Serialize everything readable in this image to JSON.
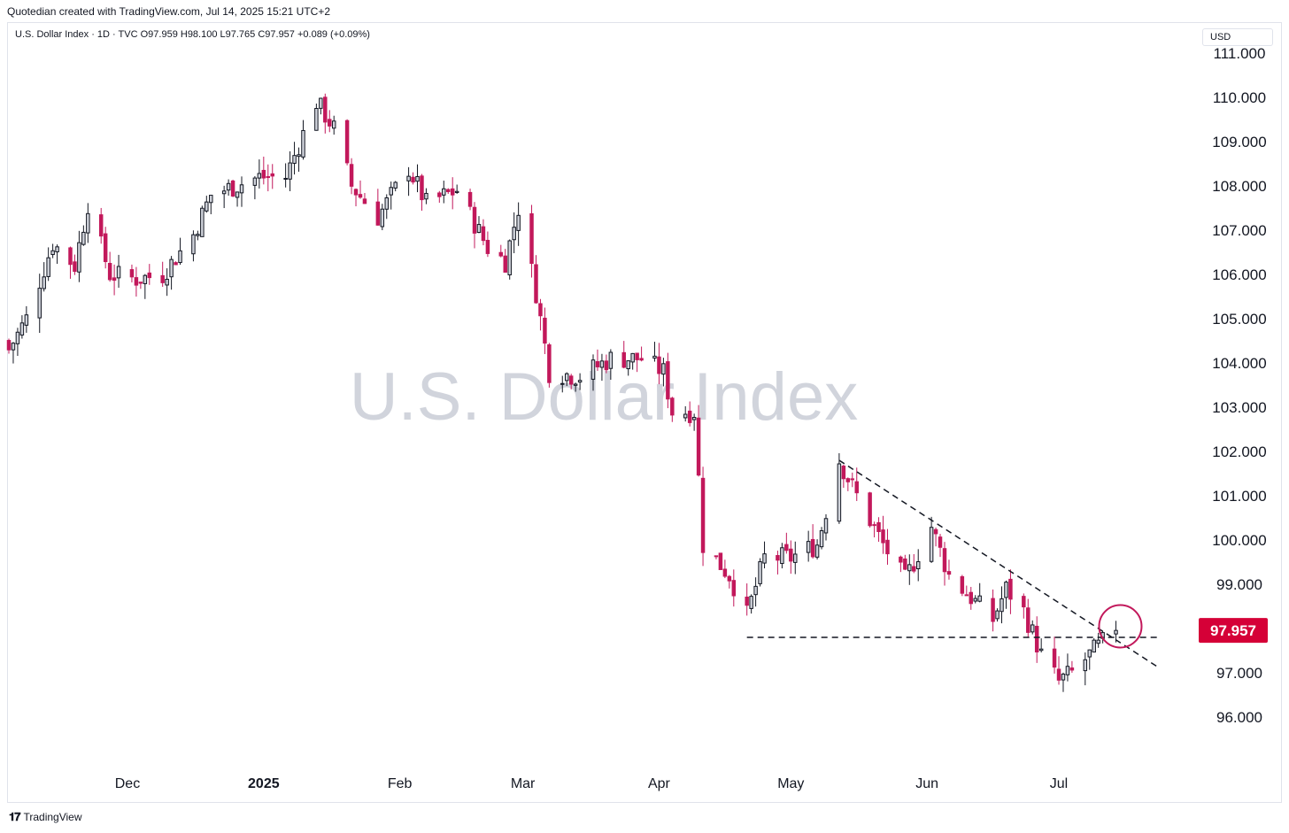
{
  "header": {
    "credit": "Quotedian created with TradingView.com, Jul 14, 2025 15:21 UTC+2"
  },
  "legend": {
    "ohlc_text": "U.S. Dollar Index · 1D · TVC  O97.959  H98.100  L97.765  C97.957  +0.089 (+0.09%)"
  },
  "price_scale": {
    "currency_label": "USD"
  },
  "footer": {
    "brand": "TradingView",
    "logo_icon": "tradingview-logo-icon"
  },
  "colors": {
    "up_body": "#d1d4dc",
    "down_body": "#c2185b",
    "candle_outline": "#131722",
    "last_price_badge": "#d50037",
    "annotation_circle": "#c2185b",
    "watermark": "#d1d4dc"
  },
  "chart_data": {
    "type": "candlestick",
    "title": "U.S. Dollar Index",
    "watermark": "U.S. Dollar Index",
    "last_price": "97.957",
    "ylim": [
      95.0,
      111.6
    ],
    "yticks": [
      "111.000",
      "110.000",
      "109.000",
      "108.000",
      "107.000",
      "106.000",
      "105.000",
      "104.000",
      "103.000",
      "102.000",
      "101.000",
      "100.000",
      "99.000",
      "98.000",
      "97.000",
      "96.000"
    ],
    "xticks": [
      {
        "date": "2024-12-01",
        "label": "Dec"
      },
      {
        "date": "2025-01-01",
        "label": "2025"
      },
      {
        "date": "2025-02-01",
        "label": "Feb"
      },
      {
        "date": "2025-03-01",
        "label": "Mar"
      },
      {
        "date": "2025-04-01",
        "label": "Apr"
      },
      {
        "date": "2025-05-01",
        "label": "May"
      },
      {
        "date": "2025-06-01",
        "label": "Jun"
      },
      {
        "date": "2025-07-01",
        "label": "Jul"
      }
    ],
    "x_start": "2024-11-04",
    "x_end": "2025-07-28",
    "anchors": [
      {
        "date": "2024-11-04",
        "close": 104.3
      },
      {
        "date": "2024-11-08",
        "close": 105.0
      },
      {
        "date": "2024-11-14",
        "close": 106.7
      },
      {
        "date": "2024-11-19",
        "close": 106.2
      },
      {
        "date": "2024-11-22",
        "close": 107.6
      },
      {
        "date": "2024-11-27",
        "close": 106.0
      },
      {
        "date": "2024-12-03",
        "close": 105.9
      },
      {
        "date": "2024-12-09",
        "close": 106.0
      },
      {
        "date": "2024-12-16",
        "close": 106.9
      },
      {
        "date": "2024-12-20",
        "close": 107.8
      },
      {
        "date": "2024-12-31",
        "close": 108.2
      },
      {
        "date": "2025-01-06",
        "close": 108.2
      },
      {
        "date": "2025-01-13",
        "close": 109.9
      },
      {
        "date": "2025-01-17",
        "close": 109.3
      },
      {
        "date": "2025-01-21",
        "close": 108.0
      },
      {
        "date": "2025-01-27",
        "close": 107.3
      },
      {
        "date": "2025-02-03",
        "close": 108.4
      },
      {
        "date": "2025-02-07",
        "close": 107.6
      },
      {
        "date": "2025-02-14",
        "close": 107.9
      },
      {
        "date": "2025-02-21",
        "close": 106.6
      },
      {
        "date": "2025-02-25",
        "close": 106.3
      },
      {
        "date": "2025-02-28",
        "close": 107.5
      },
      {
        "date": "2025-03-04",
        "close": 105.6
      },
      {
        "date": "2025-03-07",
        "close": 103.8
      },
      {
        "date": "2025-03-14",
        "close": 103.7
      },
      {
        "date": "2025-03-21",
        "close": 104.1
      },
      {
        "date": "2025-03-28",
        "close": 104.1
      },
      {
        "date": "2025-04-02",
        "close": 103.8
      },
      {
        "date": "2025-04-04",
        "close": 102.9
      },
      {
        "date": "2025-04-09",
        "close": 102.9
      },
      {
        "date": "2025-04-11",
        "close": 99.9
      },
      {
        "date": "2025-04-17",
        "close": 99.2
      },
      {
        "date": "2025-04-21",
        "close": 98.3
      },
      {
        "date": "2025-04-25",
        "close": 99.6
      },
      {
        "date": "2025-05-01",
        "close": 99.6
      },
      {
        "date": "2025-05-07",
        "close": 99.9
      },
      {
        "date": "2025-05-12",
        "close": 101.8
      },
      {
        "date": "2025-05-16",
        "close": 101.0
      },
      {
        "date": "2025-05-22",
        "close": 99.9
      },
      {
        "date": "2025-05-27",
        "close": 99.1
      },
      {
        "date": "2025-06-02",
        "close": 100.3
      },
      {
        "date": "2025-06-06",
        "close": 99.2
      },
      {
        "date": "2025-06-12",
        "close": 98.6
      },
      {
        "date": "2025-06-16",
        "close": 98.2
      },
      {
        "date": "2025-06-19",
        "close": 98.9
      },
      {
        "date": "2025-06-23",
        "close": 98.4
      },
      {
        "date": "2025-06-27",
        "close": 97.4
      },
      {
        "date": "2025-07-01",
        "close": 96.8
      },
      {
        "date": "2025-07-04",
        "close": 97.0
      },
      {
        "date": "2025-07-09",
        "close": 97.5
      },
      {
        "date": "2025-07-14",
        "close": 97.957
      }
    ],
    "support_line": {
      "from": {
        "date": "2025-04-21",
        "y": 97.8
      },
      "to": {
        "date": "2025-07-24",
        "y": 97.8
      }
    },
    "resistance_line": {
      "from": {
        "date": "2025-05-12",
        "y": 101.8
      },
      "to": {
        "date": "2025-07-24",
        "y": 97.1
      }
    },
    "highlight_circle": {
      "date": "2025-07-15",
      "y": 98.05
    }
  }
}
